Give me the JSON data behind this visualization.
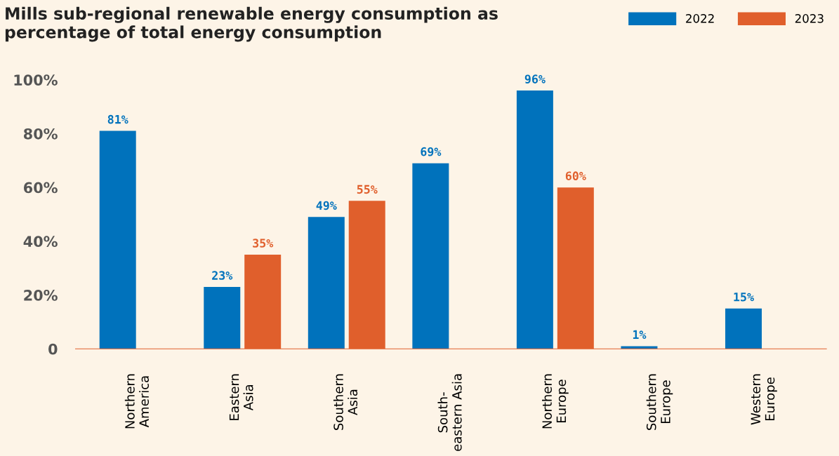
{
  "chart_data": {
    "type": "bar",
    "title": "Mills sub-regional renewable energy consumption as\npercentage of total energy consumption",
    "categories": [
      "Northern\nAmerica",
      "Eastern\nAsia",
      "Southern\nAsia",
      "South-\neastern Asia",
      "Northern\nEurope",
      "Southern\nEurope",
      "Western\nEurope"
    ],
    "series": [
      {
        "name": "2022",
        "color": "#0072bc",
        "values": [
          81,
          23,
          49,
          69,
          96,
          1,
          15
        ],
        "value_labels": [
          "81%",
          "23%",
          "49%",
          "69%",
          "96%",
          "1%",
          "15%"
        ]
      },
      {
        "name": "2023",
        "color": "#e05f2c",
        "values": [
          null,
          35,
          55,
          null,
          60,
          null,
          null
        ],
        "value_labels": [
          null,
          "35%",
          "55%",
          null,
          "60%",
          null,
          null
        ]
      }
    ],
    "ylim": [
      0,
      100
    ],
    "yticks": [
      {
        "value": 0,
        "label": "0"
      },
      {
        "value": 20,
        "label": "20%"
      },
      {
        "value": 40,
        "label": "40%"
      },
      {
        "value": 60,
        "label": "60%"
      },
      {
        "value": 80,
        "label": "80%"
      },
      {
        "value": 100,
        "label": "100%"
      }
    ],
    "grid": false,
    "legend": "top right"
  }
}
